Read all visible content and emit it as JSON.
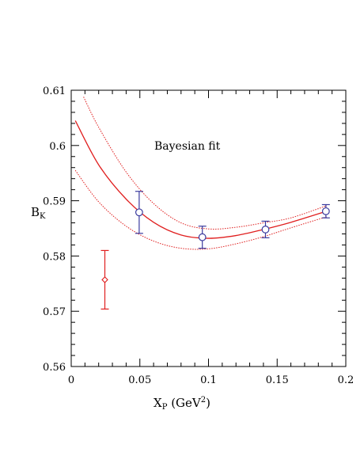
{
  "chart_data": {
    "type": "scatter",
    "title": "",
    "annotation": "Bayesian fit",
    "xlabel": {
      "main": "X",
      "sub": "P",
      "rest": " (GeV",
      "sup": "2",
      "close": ")"
    },
    "ylabel": {
      "main": "B",
      "sub": "K"
    },
    "xlim": [
      0,
      0.2
    ],
    "ylim": [
      0.56,
      0.61
    ],
    "x_ticks": [
      0,
      0.05,
      0.1,
      0.15,
      0.2
    ],
    "x_tick_labels": [
      "0",
      "0.05",
      "0.1",
      "0.15",
      "0.2"
    ],
    "y_ticks": [
      0.56,
      0.57,
      0.58,
      0.59,
      0.6,
      0.61
    ],
    "y_tick_labels": [
      "0.56",
      "0.57",
      "0.58",
      "0.59",
      "0.6",
      "0.61"
    ],
    "grid": false,
    "colors": {
      "data": "#3b3b9e",
      "fit": "#e01f1f",
      "extrapolated": "#e01f1f",
      "axes": "#000000"
    },
    "series": [
      {
        "marker": "circle",
        "color": "#3b3b9e",
        "points": [
          {
            "x": 0.0495,
            "y": 0.5879,
            "err": 0.0038
          },
          {
            "x": 0.0955,
            "y": 0.5834,
            "err": 0.002
          },
          {
            "x": 0.1415,
            "y": 0.5848,
            "err": 0.0015
          },
          {
            "x": 0.1855,
            "y": 0.5881,
            "err": 0.0012
          }
        ]
      },
      {
        "marker": "diamond",
        "color": "#e01f1f",
        "points": [
          {
            "x": 0.0245,
            "y": 0.5757,
            "err": 0.0053
          }
        ]
      }
    ],
    "fit": {
      "color": "#e01f1f",
      "central": {
        "x": [
          0.003,
          0.02,
          0.04,
          0.06,
          0.08,
          0.1,
          0.12,
          0.14,
          0.16,
          0.186
        ],
        "y": [
          0.6045,
          0.5965,
          0.5903,
          0.5861,
          0.5838,
          0.5832,
          0.5837,
          0.5848,
          0.5861,
          0.5881
        ]
      },
      "upper": {
        "x": [
          0.009,
          0.02,
          0.04,
          0.06,
          0.08,
          0.1,
          0.12,
          0.14,
          0.16,
          0.186
        ],
        "y": [
          0.6088,
          0.6033,
          0.5952,
          0.5895,
          0.586,
          0.5849,
          0.5852,
          0.586,
          0.5869,
          0.5891
        ]
      },
      "lower": {
        "x": [
          0.003,
          0.02,
          0.04,
          0.06,
          0.08,
          0.1,
          0.12,
          0.14,
          0.16,
          0.186
        ],
        "y": [
          0.5955,
          0.5898,
          0.5854,
          0.5827,
          0.5814,
          0.5813,
          0.5822,
          0.5835,
          0.5851,
          0.5871
        ]
      }
    }
  }
}
